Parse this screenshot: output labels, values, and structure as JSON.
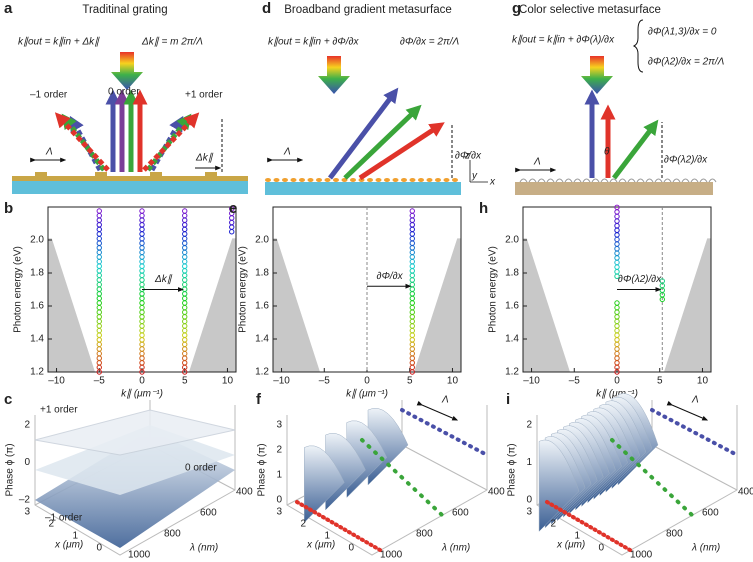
{
  "panels": {
    "a": {
      "letter": "a",
      "title": "Traditinal grating",
      "eq1": "k∥out = k∥in + Δk∥",
      "eq2": "Δk∥ = m 2π/Λ",
      "labels": [
        "–1 order",
        "0 order",
        "+1 order"
      ],
      "period": "Λ",
      "dk": "Δk∥"
    },
    "d": {
      "letter": "d",
      "title": "Broadband gradient metasurface",
      "eq1": "k∥out = k∥in + ∂Φ/∂x",
      "eq2": "∂Φ/∂x = 2π/Λ",
      "period": "Λ",
      "grad": "∂Φ/∂x",
      "axes": [
        "z",
        "y",
        "x"
      ]
    },
    "g": {
      "letter": "g",
      "title": "Color selective metasurface",
      "eq1": "k∥out = k∥in + ∂Φ(λ)/∂x",
      "eq2": "∂Φ(λ1,3)/∂x = 0",
      "eq3": "∂Φ(λ2)/∂x = 2π/Λ",
      "period": "Λ",
      "theta": "θ",
      "grad": "∂Φ(λ2)/∂x"
    }
  },
  "charts": [
    {
      "letter": "b",
      "ylabel": "Photon energy (eV)",
      "xlabel": "k∥ (μm⁻¹)",
      "ylim": [
        1.2,
        2.2
      ],
      "yticks": [
        1.2,
        1.4,
        1.6,
        1.8,
        {
          "value": 2,
          "label": "2.0"
        }
      ],
      "xlim": [
        -11,
        11
      ],
      "xticks": [
        {
          "value": -10,
          "label": "–10"
        },
        {
          "value": -5,
          "label": "–5"
        },
        0,
        5,
        10
      ],
      "columns": [
        {
          "k": -5,
          "e": [
            1.2,
            2.2
          ]
        },
        {
          "k": 0,
          "e": [
            1.2,
            2.2
          ]
        },
        {
          "k": 5,
          "e": [
            1.2,
            2.2
          ]
        },
        {
          "k": 10.5,
          "e": [
            2.05,
            2.2
          ]
        }
      ],
      "arrow": {
        "from": 0,
        "to": 5,
        "at": 1.7,
        "label": "Δk∥"
      }
    },
    {
      "letter": "e",
      "ylabel": "Photon energy (eV)",
      "xlabel": "k∥ (μm⁻¹)",
      "ylim": [
        1.2,
        2.2
      ],
      "yticks": [
        1.2,
        1.4,
        1.6,
        1.8,
        {
          "value": 2,
          "label": "2.0"
        }
      ],
      "xlim": [
        -11,
        11
      ],
      "xticks": [
        {
          "value": -10,
          "label": "–10"
        },
        {
          "value": -5,
          "label": "–5"
        },
        0,
        5,
        10
      ],
      "guide": 0,
      "columns": [
        {
          "k": 5.3,
          "e": [
            1.2,
            2.2
          ]
        }
      ],
      "arrow": {
        "from": 0,
        "to": 5.3,
        "at": 1.72,
        "label": "∂Φ/∂x"
      }
    },
    {
      "letter": "h",
      "ylabel": "Photon energy (eV)",
      "xlabel": "k∥ (μm⁻¹)",
      "ylim": [
        1.2,
        2.2
      ],
      "yticks": [
        1.2,
        1.4,
        1.6,
        1.8,
        {
          "value": 2,
          "label": "2.0"
        }
      ],
      "xlim": [
        -11,
        11
      ],
      "xticks": [
        {
          "value": -10,
          "label": "–10"
        },
        {
          "value": -5,
          "label": "–5"
        },
        0,
        5,
        10
      ],
      "guide": 5.3,
      "columns": [
        {
          "k": 0,
          "e": [
            1.2,
            1.62
          ]
        },
        {
          "k": 0,
          "e": [
            1.78,
            2.2
          ]
        },
        {
          "k": 5.3,
          "e": [
            1.64,
            1.76
          ]
        }
      ],
      "arrow": {
        "from": 0,
        "to": 5.3,
        "at": 1.7,
        "label": "∂Φ(λ2)/∂x"
      }
    }
  ],
  "surfaces": [
    {
      "letter": "c",
      "zlabel": "Phase ϕ (π)",
      "xlabel": "x (μm)",
      "llabel": "λ (nm)",
      "zticks": [
        "2",
        "0",
        "–2"
      ],
      "xticks": [
        "3",
        "2",
        "1",
        "0"
      ],
      "lticks": [
        "1000",
        "800",
        "600",
        "400"
      ],
      "labels": [
        "+1 order",
        "0 order",
        "–1 order"
      ]
    },
    {
      "letter": "f",
      "zlabel": "Phase ϕ (π)",
      "xlabel": "x (μm)",
      "llabel": "λ (nm)",
      "zticks": [
        "3",
        "2",
        "1",
        "0"
      ],
      "xticks": [
        "3",
        "2",
        "1",
        "0"
      ],
      "lticks": [
        "1000",
        "800",
        "600",
        "400"
      ],
      "labels": [
        "Λ"
      ]
    },
    {
      "letter": "i",
      "zlabel": "Phase ϕ (π)",
      "xlabel": "x (μm)",
      "llabel": "λ (nm)",
      "zticks": [
        "2",
        "1",
        "0"
      ],
      "xticks": [
        "3",
        "2",
        "1",
        "0"
      ],
      "lticks": [
        "1000",
        "800",
        "600",
        "400"
      ],
      "labels": [
        "Λ"
      ]
    }
  ]
}
